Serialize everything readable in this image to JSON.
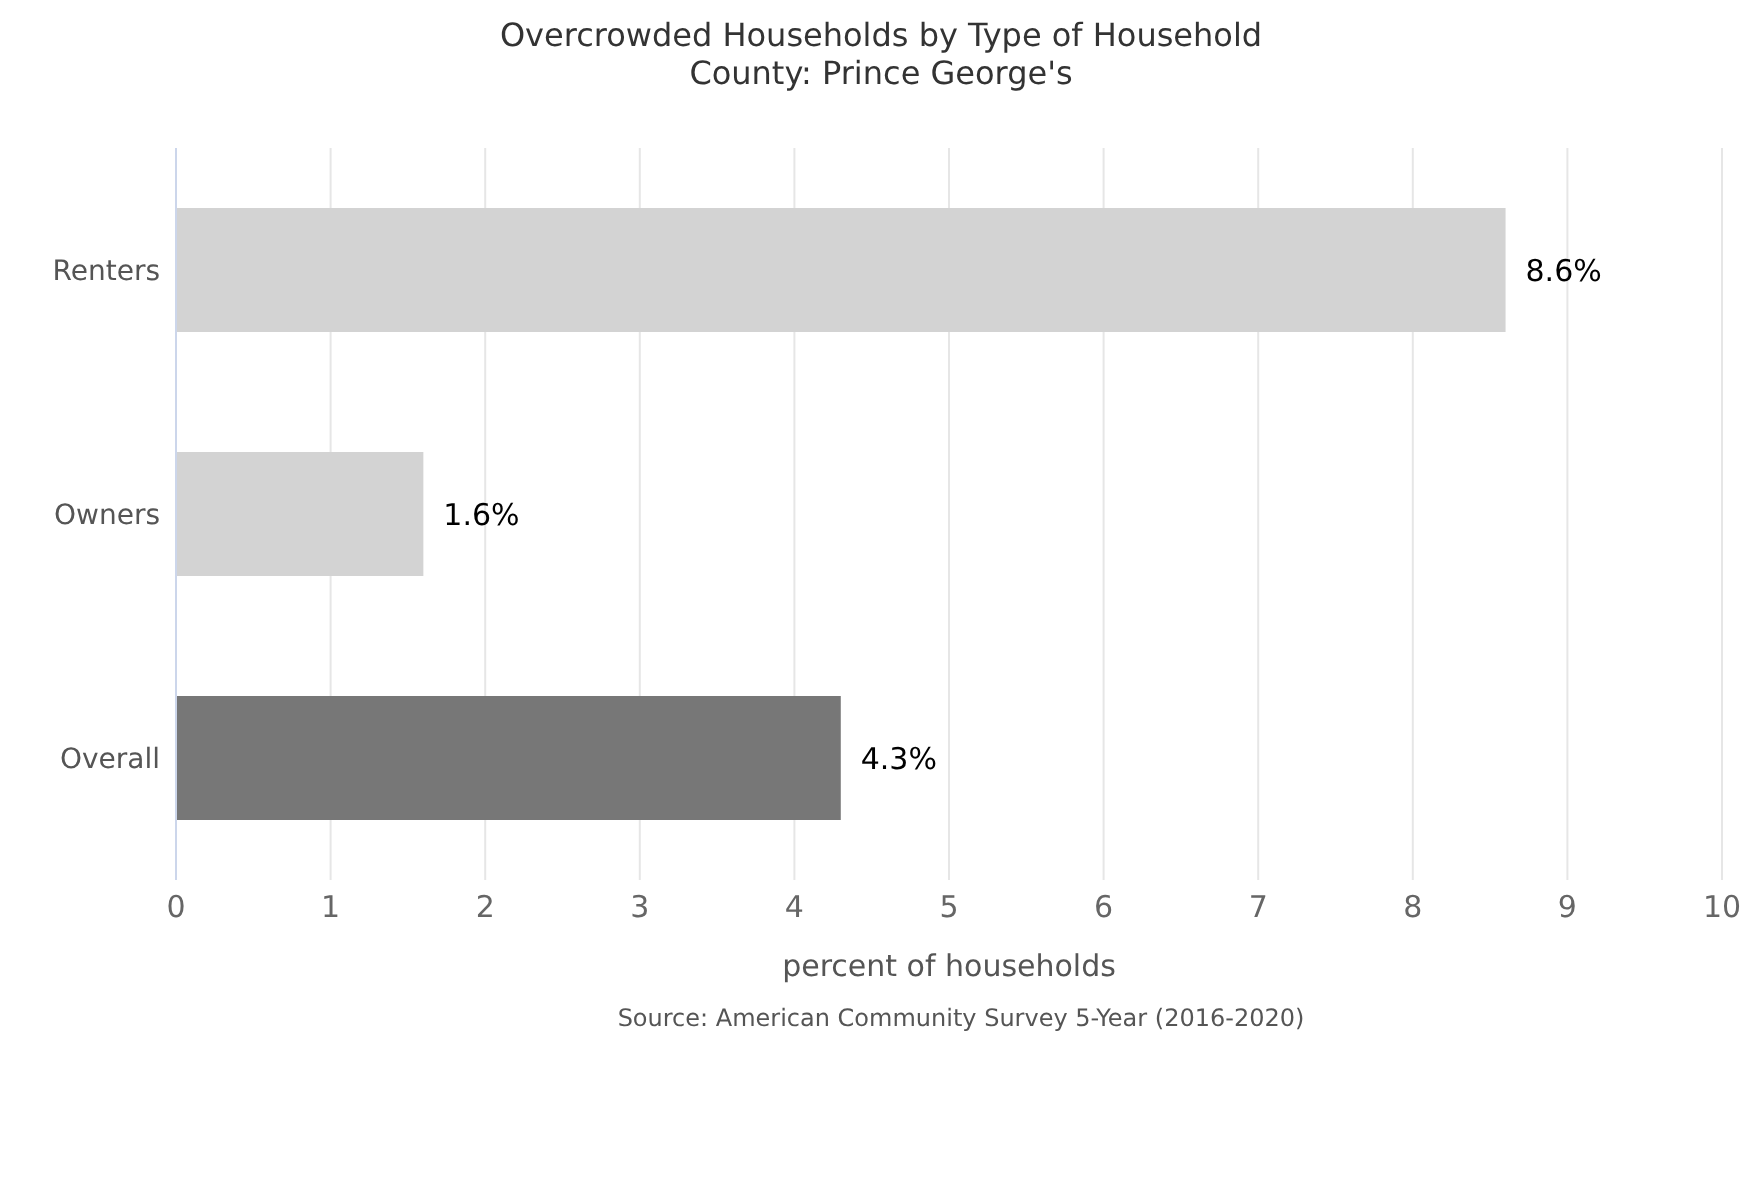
{
  "chart_data": {
    "type": "bar",
    "orientation": "horizontal",
    "title": "Overcrowded Households by Type of Household",
    "subtitle": "County: Prince George's",
    "categories": [
      "Renters",
      "Owners",
      "Overall"
    ],
    "values": [
      8.6,
      1.6,
      4.3
    ],
    "colors": [
      "#d3d3d3",
      "#d3d3d3",
      "#777777"
    ],
    "value_labels": [
      "8.6%",
      "1.6%",
      "4.3%"
    ],
    "xlabel": "percent of households",
    "xlim": [
      0,
      10
    ],
    "xticks": [
      0,
      1,
      2,
      3,
      4,
      5,
      6,
      7,
      8,
      9,
      10
    ],
    "grid": "x",
    "annotations": [
      "Source: American Community Survey 5-Year (2016-2020)"
    ]
  }
}
